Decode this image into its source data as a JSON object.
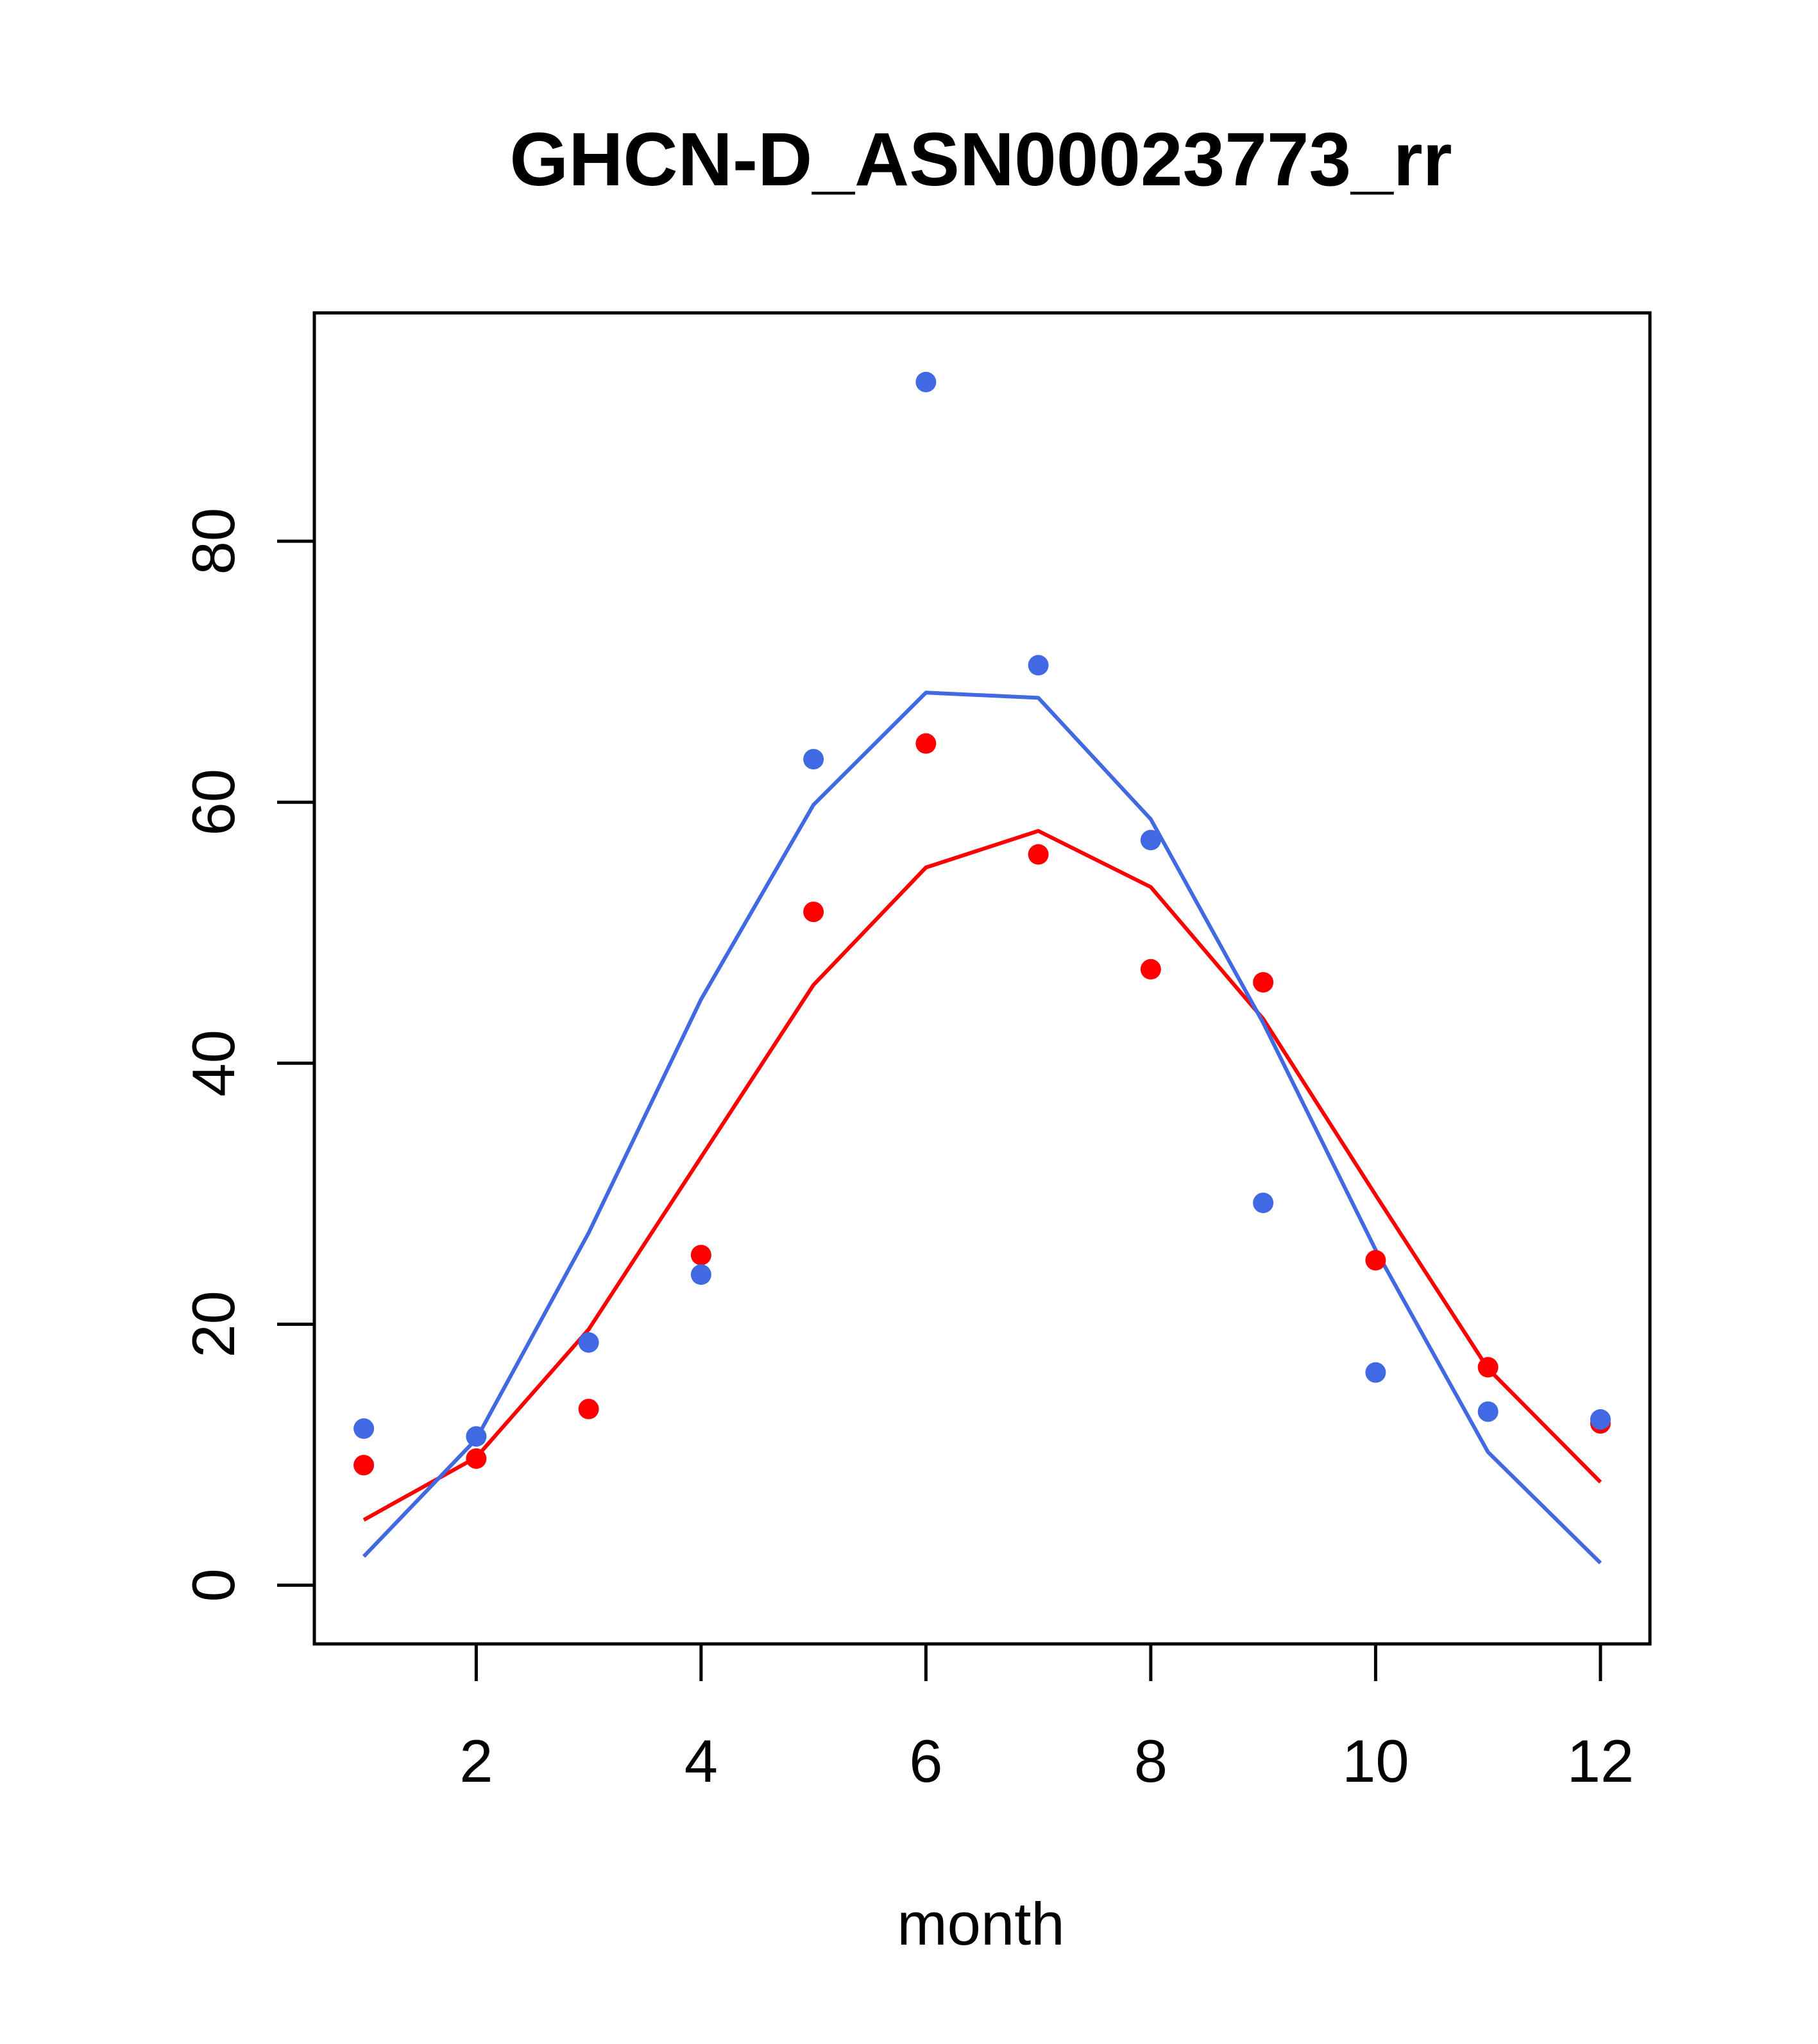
{
  "chart_data": {
    "type": "line",
    "title": "GHCN-D_ASN00023773_rr",
    "xlabel": "month",
    "ylabel": "",
    "xlim": [
      0.56,
      12.44
    ],
    "ylim": [
      -4.5,
      97.5
    ],
    "x_ticks": [
      2,
      4,
      6,
      8,
      10,
      12
    ],
    "y_ticks": [
      0,
      20,
      40,
      60,
      80
    ],
    "grid": false,
    "legend": "none",
    "series": [
      {
        "color": "#ff0000",
        "style": "points",
        "x": [
          1,
          2,
          3,
          4,
          5,
          6,
          7,
          8,
          9,
          10,
          11,
          12
        ],
        "values": [
          9.2,
          9.7,
          13.5,
          25.3,
          51.6,
          64.5,
          56.0,
          47.2,
          46.2,
          24.9,
          16.7,
          12.4
        ]
      },
      {
        "color": "#4169e1",
        "style": "points",
        "x": [
          1,
          2,
          3,
          4,
          5,
          6,
          7,
          8,
          9,
          10,
          11,
          12
        ],
        "values": [
          12.0,
          11.4,
          18.6,
          23.8,
          63.3,
          92.2,
          70.5,
          57.1,
          29.3,
          16.3,
          13.3,
          12.7
        ]
      },
      {
        "color": "#ff0000",
        "style": "line",
        "x": [
          1,
          2,
          3,
          4,
          5,
          6,
          7,
          8,
          9,
          10,
          11,
          12
        ],
        "values": [
          5.0,
          9.8,
          19.6,
          32.8,
          46.0,
          55.0,
          57.8,
          53.5,
          43.4,
          29.9,
          16.6,
          7.9
        ]
      },
      {
        "color": "#4169e1",
        "style": "line",
        "x": [
          1,
          2,
          3,
          4,
          5,
          6,
          7,
          8,
          9,
          10,
          11,
          12
        ],
        "values": [
          2.2,
          11.2,
          27.0,
          44.9,
          59.8,
          68.4,
          68.0,
          58.7,
          43.1,
          25.7,
          10.2,
          1.7
        ]
      }
    ]
  }
}
